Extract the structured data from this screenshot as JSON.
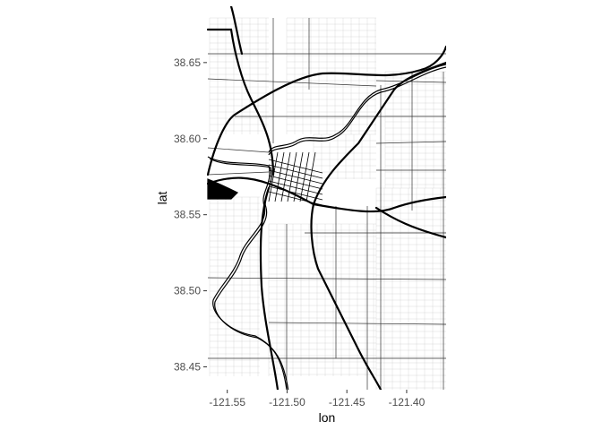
{
  "chart_data": {
    "type": "map",
    "xlabel": "lon",
    "ylabel": "lat",
    "xlim": [
      -121.567,
      -121.367
    ],
    "ylim": [
      38.435,
      38.687
    ],
    "x_ticks": [
      {
        "value": -121.55,
        "label": "-121.55"
      },
      {
        "value": -121.5,
        "label": "-121.50"
      },
      {
        "value": -121.45,
        "label": "-121.45"
      },
      {
        "value": -121.4,
        "label": "-121.40"
      }
    ],
    "y_ticks": [
      {
        "value": 38.65,
        "label": "38.65"
      },
      {
        "value": 38.6,
        "label": "38.60"
      },
      {
        "value": 38.55,
        "label": "38.55"
      },
      {
        "value": 38.5,
        "label": "38.50"
      },
      {
        "value": 38.45,
        "label": "38.45"
      }
    ],
    "grid": false,
    "colors": {
      "roads": "#000000",
      "streets": "#cccccc",
      "background": "#ffffff",
      "tick_text": "#4d4d4d"
    }
  }
}
